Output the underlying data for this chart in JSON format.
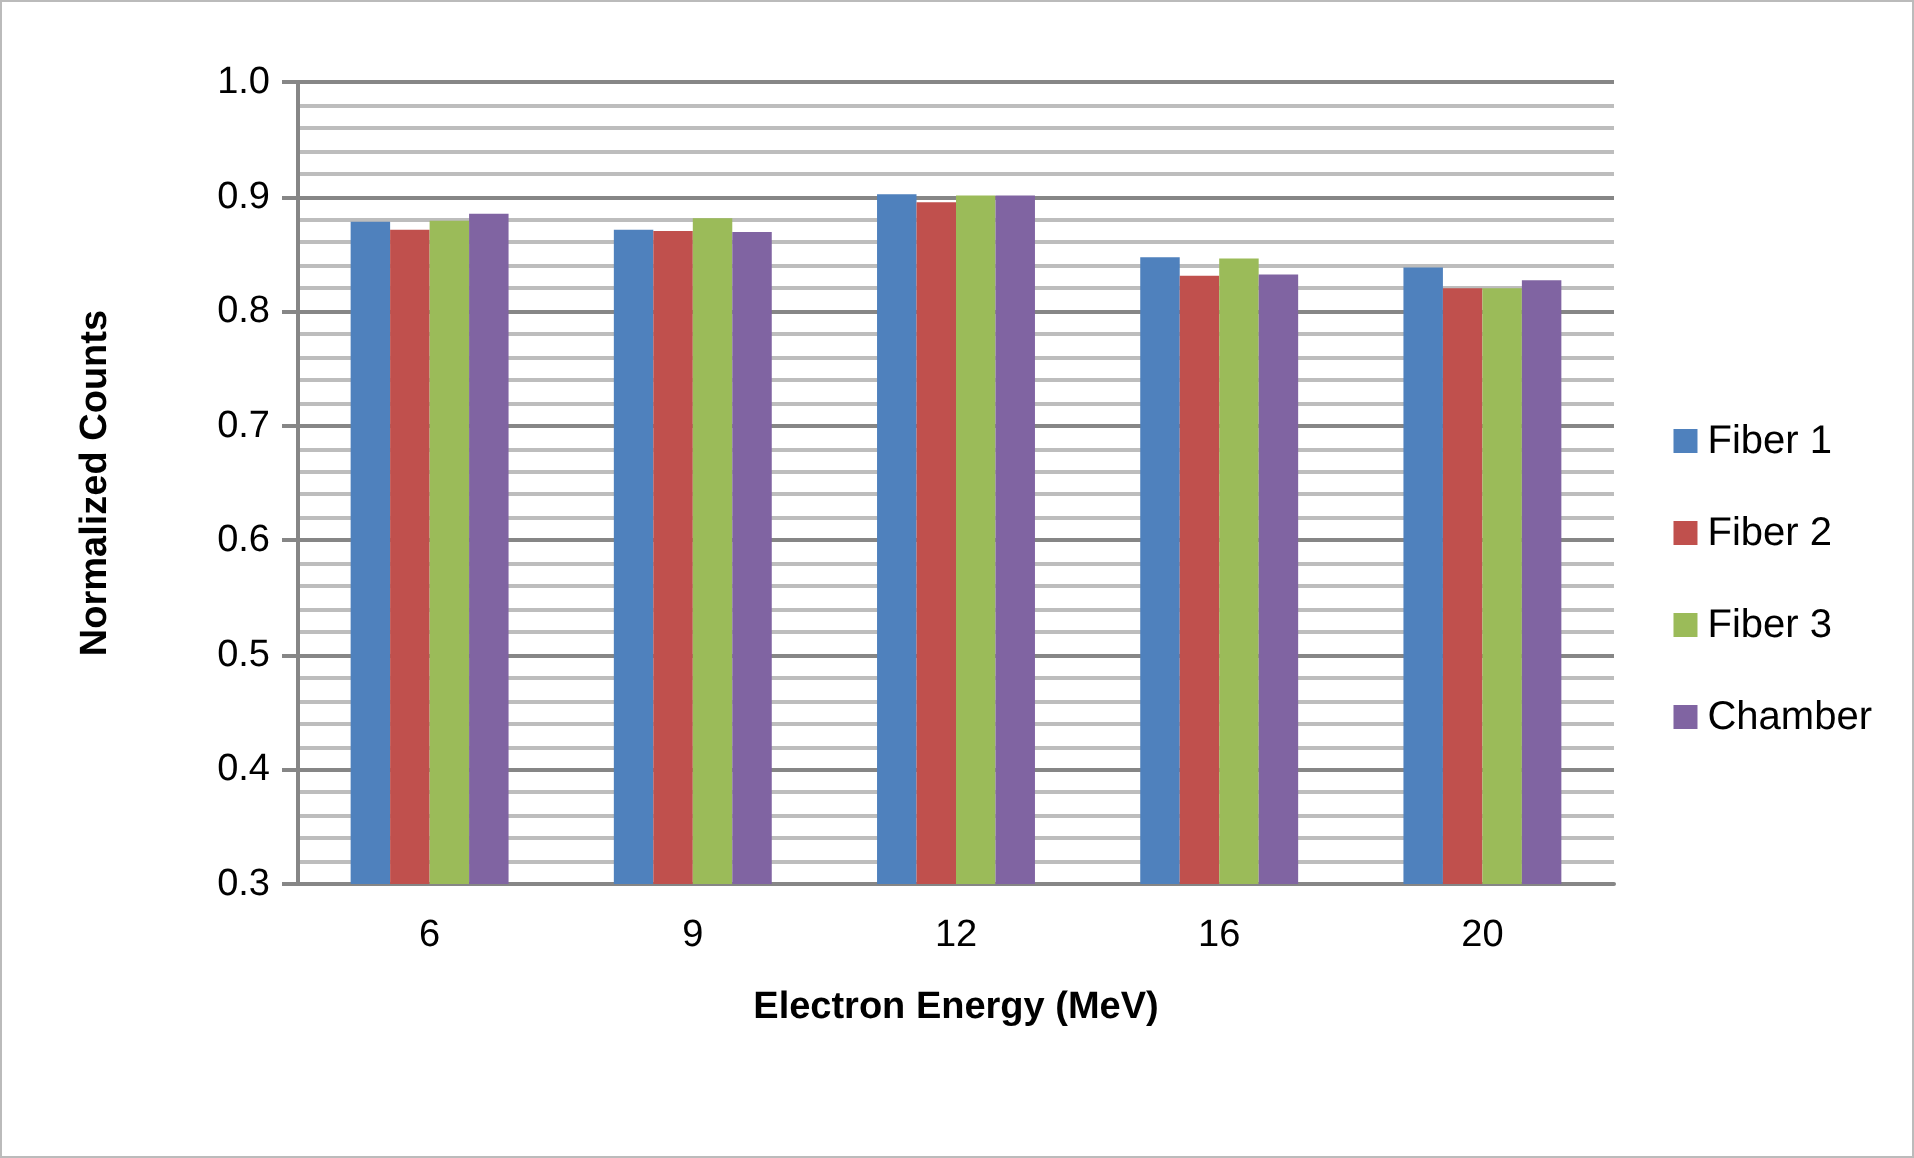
{
  "chart_data": {
    "type": "bar",
    "xlabel": "Electron Energy (MeV)",
    "ylabel": "Normalized Counts",
    "categories": [
      "6",
      "9",
      "12",
      "16",
      "20"
    ],
    "series": [
      {
        "name": "Fiber 1",
        "color": "#4f81bd",
        "values": [
          0.878,
          0.871,
          0.902,
          0.847,
          0.838
        ]
      },
      {
        "name": "Fiber 2",
        "color": "#c0504d",
        "values": [
          0.871,
          0.87,
          0.895,
          0.831,
          0.82
        ]
      },
      {
        "name": "Fiber 3",
        "color": "#9bbb59",
        "values": [
          0.879,
          0.881,
          0.901,
          0.846,
          0.82
        ]
      },
      {
        "name": "Chamber",
        "color": "#8064a2",
        "values": [
          0.885,
          0.869,
          0.901,
          0.832,
          0.827
        ]
      }
    ],
    "ylim": [
      0.3,
      1.0
    ],
    "yticks": [
      0.3,
      0.4,
      0.5,
      0.6,
      0.7,
      0.8,
      0.9,
      {
        "value": 1,
        "label": "1.0"
      }
    ],
    "grid": true,
    "legend": "right"
  }
}
